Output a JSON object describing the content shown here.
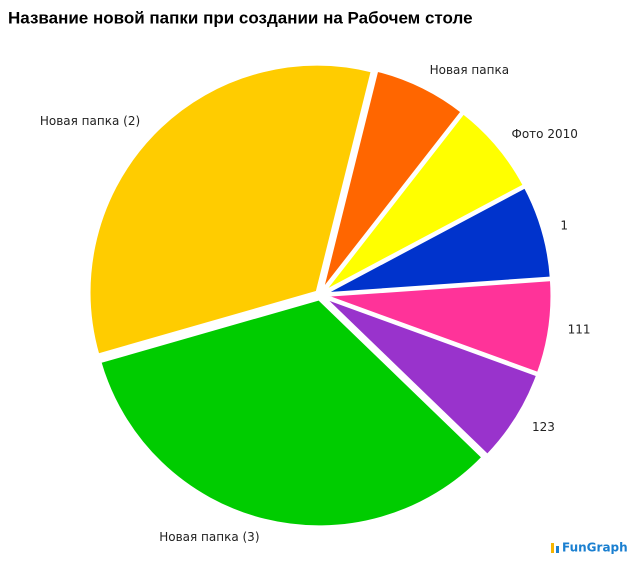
{
  "chart_data": {
    "type": "pie",
    "title": "Название новой папки при создании на Рабочем столе",
    "categories": [
      "Новая папка",
      "Фото 2010",
      "1",
      "111",
      "123",
      "Новая папка (3)",
      "Новая папка (2)"
    ],
    "values": [
      1,
      1,
      1,
      1,
      1,
      5,
      5
    ],
    "colors": [
      "#ff6600",
      "#ffff00",
      "#0033cc",
      "#ff3399",
      "#9933cc",
      "#00cc00",
      "#ffcc00"
    ],
    "credit": "FunGraph"
  }
}
